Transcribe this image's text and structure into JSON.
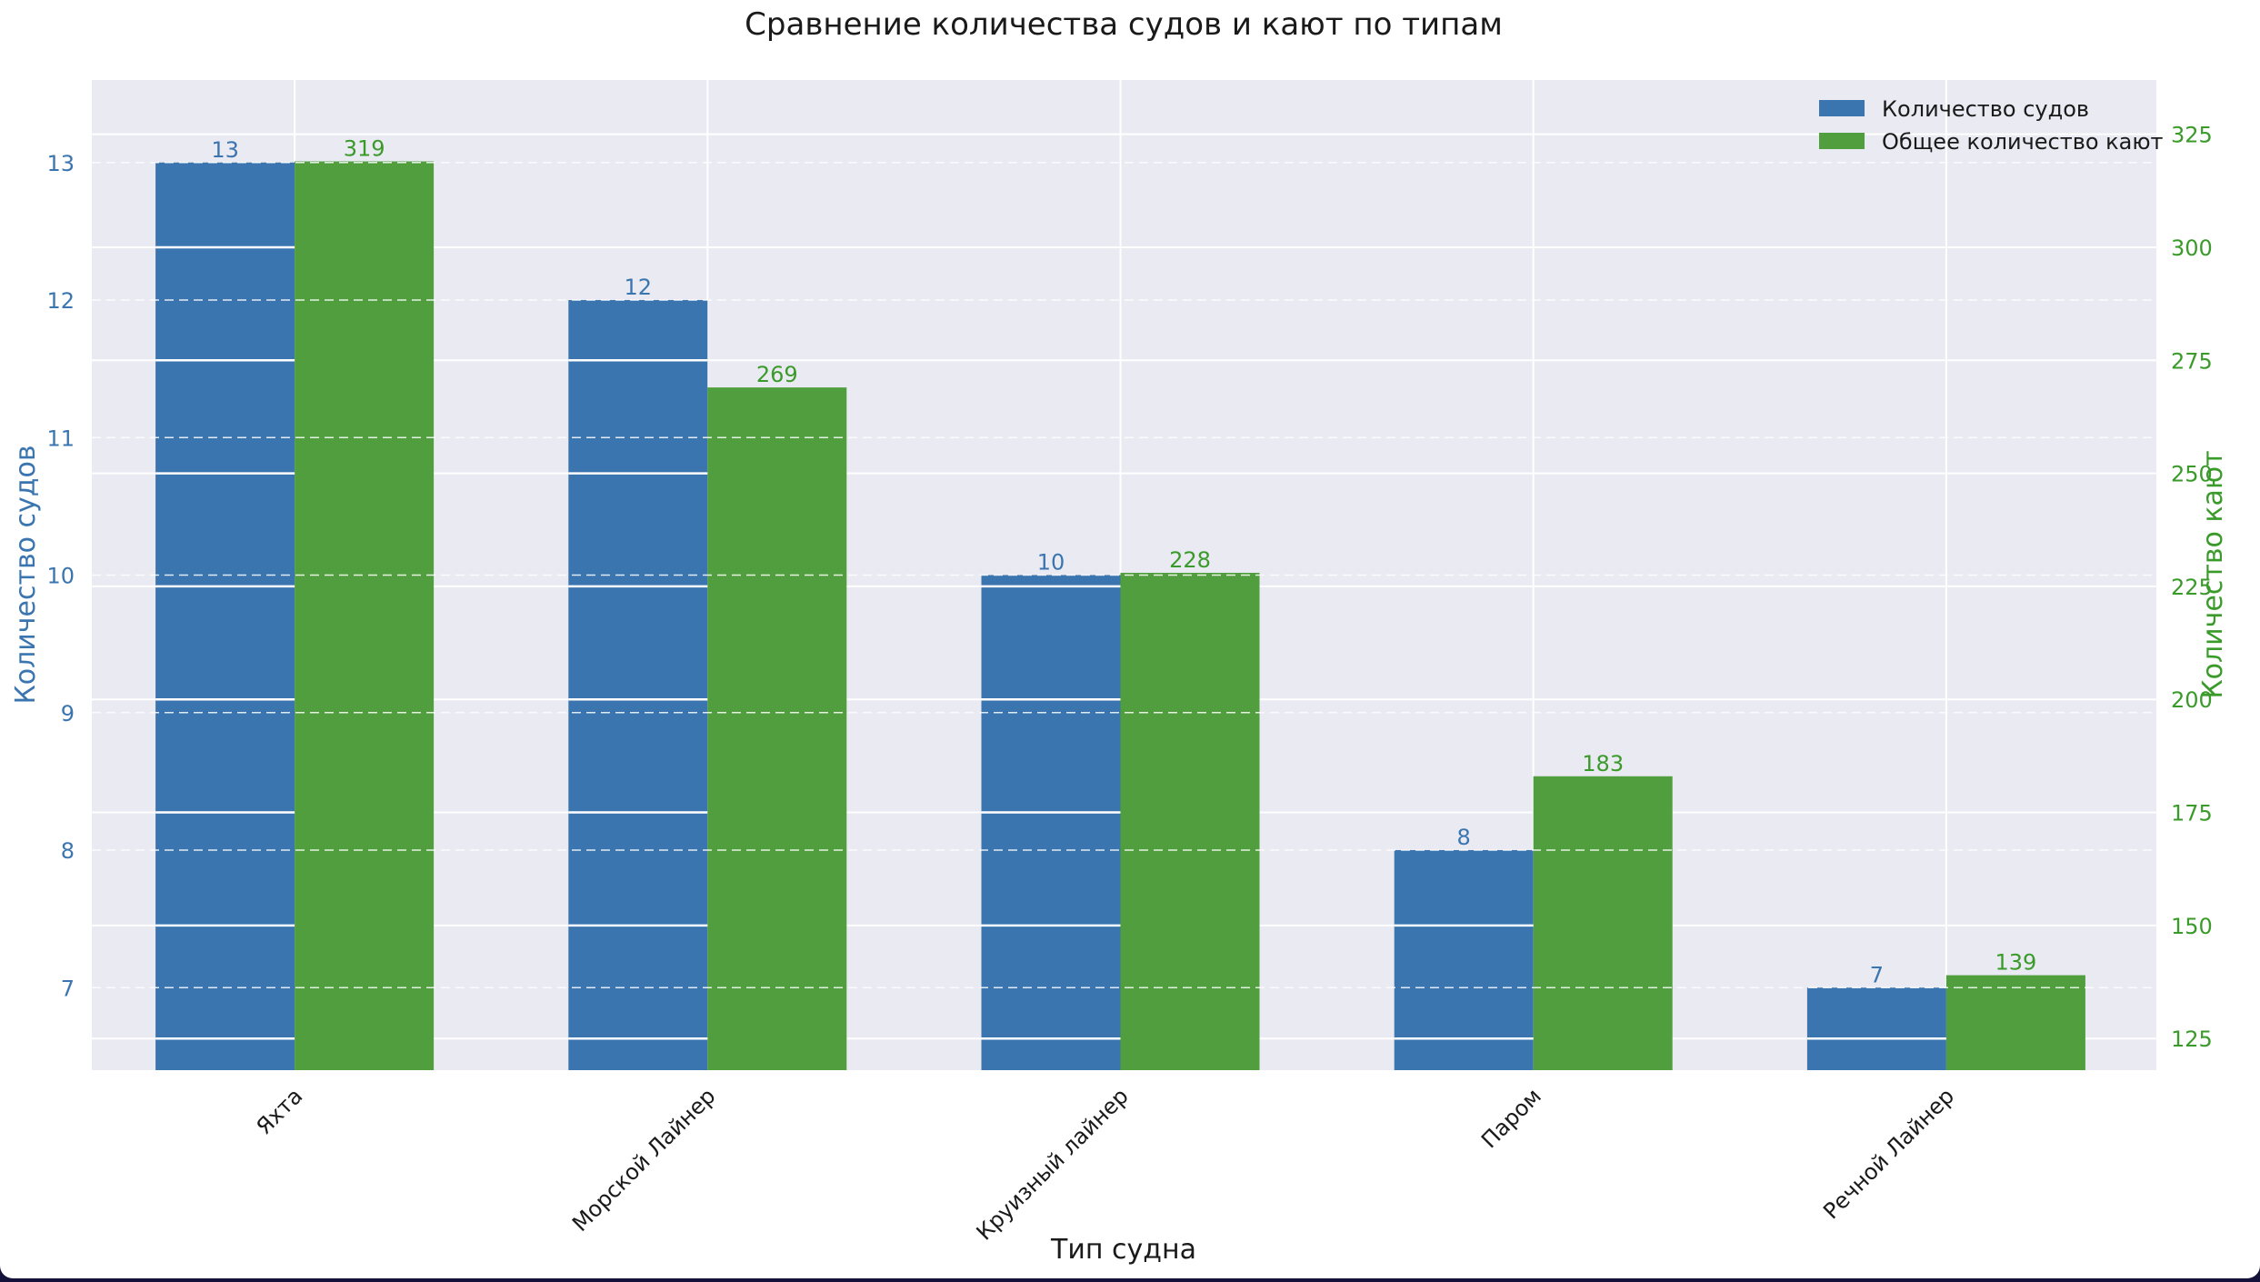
{
  "chart_data": {
    "type": "bar",
    "title": "Сравнение количества судов и кают по типам",
    "xlabel": "Тип судна",
    "ylabel_left": "Количество судов",
    "ylabel_right": "Количество кают",
    "categories": [
      "Яхта",
      "Морской Лайнер",
      "Круизный лайнер",
      "Паром",
      "Речной Лайнер"
    ],
    "series": [
      {
        "name": "Количество судов",
        "axis": "left",
        "color": "#3b75af",
        "values": [
          13,
          12,
          10,
          8,
          7
        ]
      },
      {
        "name": "Общее количество кают",
        "axis": "right",
        "color": "#519e3e",
        "values": [
          319,
          269,
          228,
          183,
          139
        ]
      }
    ],
    "ylim_left": [
      6.4,
      13.6
    ],
    "ylim_right": [
      118,
      337
    ],
    "yticks_left": [
      7,
      8,
      9,
      10,
      11,
      12,
      13
    ],
    "yticks_right": [
      125,
      150,
      175,
      200,
      225,
      250,
      275,
      300,
      325
    ],
    "grid": true,
    "legend_position": "top-right",
    "colors": {
      "left_axis": "#3b75af",
      "right_axis": "#3a9a2a",
      "plot_background": "#eaeaf2",
      "grid": "#ffffff"
    }
  }
}
